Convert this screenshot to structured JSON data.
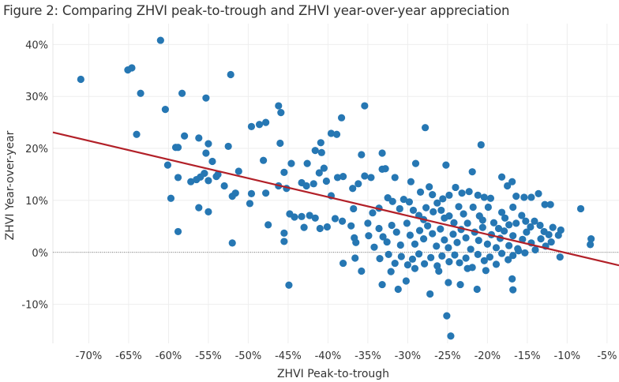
{
  "figure": {
    "title": "Figure 2: Comparing ZHVI peak-to-trough and ZHVI year-over-year appreciation"
  },
  "chart_data": {
    "type": "scatter",
    "title": "Figure 2: Comparing ZHVI peak-to-trough and ZHVI year-over-year appreciation",
    "xlabel": "ZHVI Peak-to-trough",
    "ylabel": "ZHVI Year-over-year",
    "xlim": [
      -74.5,
      -3.5
    ],
    "ylim": [
      -17.5,
      44
    ],
    "x_ticks": [
      -70,
      -65,
      -60,
      -55,
      -50,
      -45,
      -40,
      -35,
      -30,
      -25,
      -20,
      -15,
      -10,
      -5
    ],
    "x_tick_labels": [
      "-70%",
      "-65%",
      "-60%",
      "-55%",
      "-50%",
      "-45%",
      "-40%",
      "-35%",
      "-30%",
      "-25%",
      "-20%",
      "-15%",
      "-10%",
      "-5%"
    ],
    "y_ticks": [
      -10,
      0,
      10,
      20,
      30,
      40
    ],
    "y_tick_labels": [
      "-10%",
      "0%",
      "10%",
      "20%",
      "30%",
      "40%"
    ],
    "grid": true,
    "zero_line": "dotted",
    "colors": {
      "points": "#2677b3",
      "trend": "#b22028",
      "grid": "#eeeeee"
    },
    "trend_line": {
      "x": [
        -74.5,
        -3.5
      ],
      "y": [
        23.1,
        -2.5
      ]
    },
    "points": [
      [
        -71.0,
        33.3
      ],
      [
        -65.1,
        35.1
      ],
      [
        -64.6,
        35.5
      ],
      [
        -61.0,
        40.8
      ],
      [
        -52.2,
        34.2
      ],
      [
        -63.5,
        30.6
      ],
      [
        -60.4,
        27.5
      ],
      [
        -58.3,
        30.6
      ],
      [
        -55.3,
        29.7
      ],
      [
        -46.2,
        28.2
      ],
      [
        -45.9,
        26.9
      ],
      [
        -35.4,
        28.2
      ],
      [
        -64.0,
        22.7
      ],
      [
        -59.1,
        20.2
      ],
      [
        -58.8,
        20.2
      ],
      [
        -58.0,
        22.4
      ],
      [
        -56.2,
        22.0
      ],
      [
        -55.0,
        20.9
      ],
      [
        -52.5,
        20.4
      ],
      [
        -49.6,
        24.2
      ],
      [
        -48.6,
        24.6
      ],
      [
        -47.8,
        25.0
      ],
      [
        -38.3,
        25.9
      ],
      [
        -38.9,
        22.7
      ],
      [
        -39.6,
        22.9
      ],
      [
        -40.9,
        21.1
      ],
      [
        -41.6,
        19.6
      ],
      [
        -46.0,
        21.0
      ],
      [
        -27.8,
        24.0
      ],
      [
        -20.8,
        20.7
      ],
      [
        -55.3,
        19.1
      ],
      [
        -54.5,
        17.5
      ],
      [
        -51.2,
        15.6
      ],
      [
        -45.5,
        15.4
      ],
      [
        -44.6,
        17.1
      ],
      [
        -42.6,
        17.1
      ],
      [
        -40.8,
        19.2
      ],
      [
        -40.5,
        16.2
      ],
      [
        -35.8,
        18.8
      ],
      [
        -33.2,
        19.1
      ],
      [
        -29.0,
        17.1
      ],
      [
        -25.2,
        16.8
      ],
      [
        -48.1,
        17.7
      ],
      [
        -60.1,
        16.8
      ],
      [
        -56.0,
        14.5
      ],
      [
        -55.5,
        15.2
      ],
      [
        -55.0,
        13.8
      ],
      [
        -54.0,
        14.6
      ],
      [
        -53.0,
        12.8
      ],
      [
        -52.0,
        10.8
      ],
      [
        -51.6,
        11.4
      ],
      [
        -58.8,
        14.4
      ],
      [
        -57.2,
        13.6
      ],
      [
        -56.5,
        14.0
      ],
      [
        -53.8,
        15.0
      ],
      [
        -59.7,
        10.4
      ],
      [
        -56.2,
        8.6
      ],
      [
        -55.0,
        7.8
      ],
      [
        -58.8,
        4.0
      ],
      [
        -52.0,
        1.8
      ],
      [
        -49.8,
        9.4
      ],
      [
        -49.6,
        11.3
      ],
      [
        -47.8,
        11.4
      ],
      [
        -46.2,
        12.8
      ],
      [
        -47.5,
        5.3
      ],
      [
        -45.2,
        12.3
      ],
      [
        -43.3,
        13.4
      ],
      [
        -42.7,
        12.8
      ],
      [
        -41.8,
        13.2
      ],
      [
        -41.1,
        15.3
      ],
      [
        -40.2,
        13.7
      ],
      [
        -38.8,
        14.4
      ],
      [
        -38.1,
        14.6
      ],
      [
        -39.6,
        10.9
      ],
      [
        -36.9,
        12.3
      ],
      [
        -36.2,
        13.2
      ],
      [
        -35.4,
        14.7
      ],
      [
        -34.6,
        14.4
      ],
      [
        -33.2,
        16.0
      ],
      [
        -32.8,
        16.1
      ],
      [
        -31.6,
        14.4
      ],
      [
        -29.6,
        13.6
      ],
      [
        -28.4,
        11.6
      ],
      [
        -27.3,
        12.6
      ],
      [
        -26.9,
        11.1
      ],
      [
        -25.6,
        10.3
      ],
      [
        -24.8,
        11.0
      ],
      [
        -24.0,
        12.5
      ],
      [
        -23.2,
        11.4
      ],
      [
        -22.3,
        11.7
      ],
      [
        -21.9,
        15.5
      ],
      [
        -21.2,
        11.0
      ],
      [
        -20.4,
        10.6
      ],
      [
        -19.6,
        10.4
      ],
      [
        -18.2,
        14.5
      ],
      [
        -17.5,
        12.8
      ],
      [
        -16.9,
        13.6
      ],
      [
        -16.4,
        10.8
      ],
      [
        -15.4,
        10.6
      ],
      [
        -14.5,
        10.6
      ],
      [
        -13.6,
        11.3
      ],
      [
        -12.8,
        9.2
      ],
      [
        -12.1,
        9.2
      ],
      [
        -8.3,
        8.4
      ],
      [
        -7.0,
        2.6
      ],
      [
        -7.1,
        1.5
      ],
      [
        -44.8,
        7.4
      ],
      [
        -44.2,
        6.8
      ],
      [
        -43.3,
        6.9
      ],
      [
        -43.0,
        4.8
      ],
      [
        -42.3,
        7.1
      ],
      [
        -41.6,
        6.6
      ],
      [
        -41.0,
        4.6
      ],
      [
        -40.1,
        4.9
      ],
      [
        -39.1,
        6.5
      ],
      [
        -38.2,
        6.0
      ],
      [
        -37.1,
        5.1
      ],
      [
        -36.8,
        8.4
      ],
      [
        -36.7,
        2.8
      ],
      [
        -36.5,
        1.9
      ],
      [
        -45.5,
        3.7
      ],
      [
        -45.5,
        2.1
      ],
      [
        -44.9,
        -6.3
      ],
      [
        -38.1,
        -2.1
      ],
      [
        -36.6,
        -1.1
      ],
      [
        -35.8,
        -3.6
      ],
      [
        -35.0,
        5.6
      ],
      [
        -34.4,
        7.6
      ],
      [
        -33.6,
        8.5
      ],
      [
        -32.5,
        10.5
      ],
      [
        -31.9,
        9.8
      ],
      [
        -31.0,
        8.4
      ],
      [
        -30.5,
        10.2
      ],
      [
        -29.8,
        9.7
      ],
      [
        -29.3,
        8.1
      ],
      [
        -28.6,
        7.1
      ],
      [
        -28.0,
        6.3
      ],
      [
        -27.7,
        8.6
      ],
      [
        -26.8,
        7.8
      ],
      [
        -26.3,
        9.5
      ],
      [
        -25.8,
        8.1
      ],
      [
        -25.4,
        6.6
      ],
      [
        -24.8,
        7.0
      ],
      [
        -24.2,
        5.7
      ],
      [
        -23.6,
        8.8
      ],
      [
        -23.0,
        7.4
      ],
      [
        -22.5,
        5.6
      ],
      [
        -21.8,
        8.7
      ],
      [
        -21.0,
        7.0
      ],
      [
        -20.6,
        6.2
      ],
      [
        -19.9,
        8.7
      ],
      [
        -19.2,
        5.7
      ],
      [
        -18.6,
        4.6
      ],
      [
        -18.2,
        7.7
      ],
      [
        -17.8,
        6.6
      ],
      [
        -17.3,
        5.3
      ],
      [
        -16.8,
        8.7
      ],
      [
        -16.4,
        5.6
      ],
      [
        -15.7,
        7.1
      ],
      [
        -15.2,
        6.0
      ],
      [
        -14.6,
        4.9
      ],
      [
        -14.1,
        6.0
      ],
      [
        -13.4,
        5.2
      ],
      [
        -12.9,
        4.0
      ],
      [
        -12.3,
        3.4
      ],
      [
        -11.8,
        4.8
      ],
      [
        -11.1,
        3.3
      ],
      [
        -10.8,
        4.3
      ],
      [
        -34.9,
        3.2
      ],
      [
        -34.2,
        1.0
      ],
      [
        -33.6,
        4.6
      ],
      [
        -33.1,
        3.0
      ],
      [
        -32.6,
        2.0
      ],
      [
        -32.0,
        5.2
      ],
      [
        -31.4,
        3.9
      ],
      [
        -30.9,
        1.4
      ],
      [
        -30.1,
        5.6
      ],
      [
        -29.7,
        3.3
      ],
      [
        -29.1,
        1.6
      ],
      [
        -28.5,
        4.2
      ],
      [
        -28.0,
        2.6
      ],
      [
        -27.5,
        5.1
      ],
      [
        -26.9,
        3.6
      ],
      [
        -26.4,
        1.2
      ],
      [
        -25.9,
        4.5
      ],
      [
        -25.4,
        2.4
      ],
      [
        -24.9,
        0.9
      ],
      [
        -24.3,
        3.5
      ],
      [
        -23.8,
        1.9
      ],
      [
        -23.3,
        4.4
      ],
      [
        -22.7,
        2.8
      ],
      [
        -22.1,
        0.6
      ],
      [
        -21.6,
        3.9
      ],
      [
        -21.1,
        2.3
      ],
      [
        -20.6,
        4.8
      ],
      [
        -20.0,
        1.6
      ],
      [
        -19.5,
        3.4
      ],
      [
        -18.9,
        0.9
      ],
      [
        -18.4,
        2.7
      ],
      [
        -17.9,
        4.1
      ],
      [
        -17.3,
        1.3
      ],
      [
        -16.8,
        3.2
      ],
      [
        -16.2,
        0.7
      ],
      [
        -15.6,
        2.5
      ],
      [
        -15.1,
        3.9
      ],
      [
        -14.5,
        1.8
      ],
      [
        -14.0,
        0.5
      ],
      [
        -13.3,
        2.6
      ],
      [
        -12.7,
        1.2
      ],
      [
        -12.0,
        2.0
      ],
      [
        -33.5,
        -1.2
      ],
      [
        -32.4,
        -0.4
      ],
      [
        -31.6,
        -2.1
      ],
      [
        -30.8,
        -0.8
      ],
      [
        -30.0,
        -2.4
      ],
      [
        -29.4,
        -1.3
      ],
      [
        -28.6,
        -0.3
      ],
      [
        -27.9,
        -2.2
      ],
      [
        -27.1,
        -1.0
      ],
      [
        -26.3,
        -2.6
      ],
      [
        -25.7,
        -0.7
      ],
      [
        -24.8,
        -1.8
      ],
      [
        -24.1,
        -0.5
      ],
      [
        -23.5,
        -2.0
      ],
      [
        -22.7,
        -1.1
      ],
      [
        -21.9,
        -2.9
      ],
      [
        -21.2,
        -0.4
      ],
      [
        -20.4,
        -1.6
      ],
      [
        -19.7,
        -0.9
      ],
      [
        -18.9,
        -2.3
      ],
      [
        -18.2,
        -0.2
      ],
      [
        -17.4,
        -1.4
      ],
      [
        -16.8,
        -0.6
      ],
      [
        -16.1,
        0.3
      ],
      [
        -15.3,
        -0.1
      ],
      [
        -10.9,
        -0.9
      ],
      [
        -33.2,
        -6.2
      ],
      [
        -32.1,
        -3.7
      ],
      [
        -31.2,
        -7.1
      ],
      [
        -30.2,
        -5.5
      ],
      [
        -29.1,
        -3.1
      ],
      [
        -27.2,
        -8.0
      ],
      [
        -26.1,
        -3.6
      ],
      [
        -24.9,
        -5.8
      ],
      [
        -23.4,
        -6.2
      ],
      [
        -22.5,
        -3.1
      ],
      [
        -21.3,
        -7.1
      ],
      [
        -20.2,
        -3.5
      ],
      [
        -16.9,
        -5.1
      ],
      [
        -16.8,
        -7.2
      ],
      [
        -25.1,
        -12.2
      ],
      [
        -24.6,
        -16.1
      ]
    ]
  }
}
